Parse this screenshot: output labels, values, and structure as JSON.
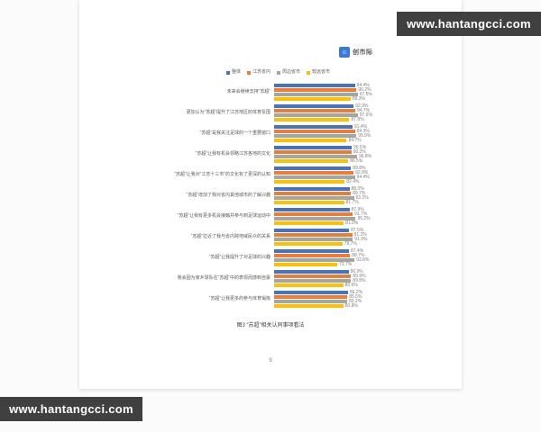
{
  "watermark": {
    "text": "www.hantangcci.com"
  },
  "logo": {
    "brand": "创市际"
  },
  "page": {
    "number": "9"
  },
  "chart_data": {
    "type": "bar",
    "orientation": "horizontal",
    "xlim": [
      0,
      100
    ],
    "value_suffix": "%",
    "grid": false,
    "legend_position": "top",
    "caption": "图3 “苏超”相关认同事项看法",
    "categories": [
      "未来会继续支持“苏超”",
      "更加认为“苏超”提升了江苏地区的体育氛围",
      "“苏超”是我关注足球的一个重要窗口",
      "“苏超”让我有机会领略江苏各地的文化",
      "“苏超”让我对“江苏十三市”的文化有了更深的认知",
      "“苏超”增加了我对省内其他城市的了解兴趣",
      "“苏超”让我有更多机会接触并参与到足球运动中",
      "“苏超”拉近了我与省内跨地域民众的关系",
      "“苏超”让我提升了对足球的兴趣",
      "我会因为家乡球队在“苏超”中的表现而感到自豪",
      "“苏超”让我更多的参与体育锻炼"
    ],
    "series": [
      {
        "name": "整体",
        "color": "#4472c4",
        "values": [
          94.4,
          92.9,
          91.4,
          90.5,
          89.8,
          88.0,
          87.9,
          87.5,
          87.4,
          86.9,
          86.2
        ]
      },
      {
        "name": "江苏省内",
        "color": "#ed7d31",
        "values": [
          96.2,
          94.7,
          94.3,
          90.2,
          92.8,
          89.7,
          91.7,
          91.2,
          88.7,
          89.9,
          85.5
        ]
      },
      {
        "name": "周边省市",
        "color": "#a5a5a5",
        "values": [
          97.5,
          97.6,
          95.9,
          96.8,
          94.4,
          93.2,
          95.2,
          91.9,
          93.8,
          89.8,
          85.2
        ]
      },
      {
        "name": "较远省市",
        "color": "#ffc000",
        "values": [
          89.3,
          87.8,
          84.7,
          86.5,
          82.4,
          81.7,
          81.0,
          79.7,
          73.7,
          80.6,
          80.8
        ]
      }
    ]
  }
}
